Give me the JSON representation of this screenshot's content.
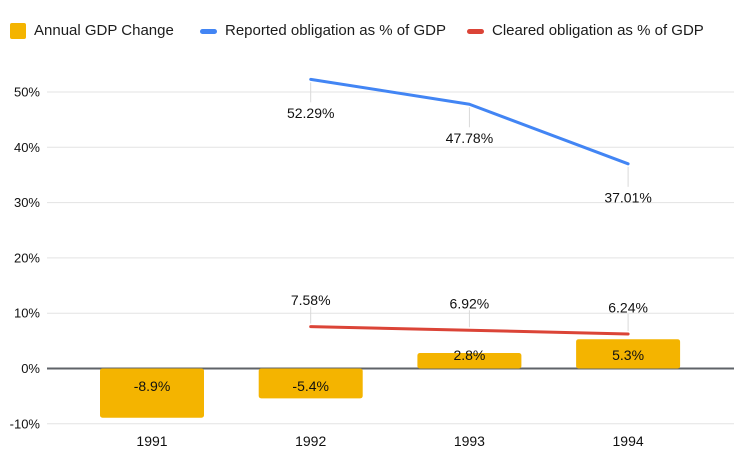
{
  "legend": {
    "items": [
      {
        "label": "Annual GDP Change",
        "swatch": "square",
        "color": "#F4B400"
      },
      {
        "label": "Reported obligation as % of GDP",
        "swatch": "line",
        "color": "#4285F4"
      },
      {
        "label": "Cleared obligation as % of GDP",
        "swatch": "line",
        "color": "#DB4437"
      }
    ]
  },
  "chart_data": {
    "type": "combo",
    "categories": [
      "1991",
      "1992",
      "1993",
      "1994"
    ],
    "series": [
      {
        "name": "Annual GDP Change",
        "type": "bar",
        "color": "#F4B400",
        "values": [
          -8.9,
          -5.4,
          2.8,
          5.3
        ],
        "labels": [
          "-8.9%",
          "-5.4%",
          "2.8%",
          "5.3%"
        ]
      },
      {
        "name": "Reported obligation as % of GDP",
        "type": "line",
        "color": "#4285F4",
        "values": [
          null,
          52.29,
          47.78,
          37.01
        ],
        "labels": [
          null,
          "52.29%",
          "47.78%",
          "37.01%"
        ],
        "label_position": "below"
      },
      {
        "name": "Cleared obligation as % of GDP",
        "type": "line",
        "color": "#DB4437",
        "values": [
          null,
          7.58,
          6.92,
          6.24
        ],
        "labels": [
          null,
          "7.58%",
          "6.92%",
          "6.24%"
        ],
        "label_position": "above"
      }
    ],
    "y_axis": {
      "ticks": [
        -10,
        0,
        10,
        20,
        30,
        40,
        50
      ],
      "tick_labels": [
        "-10%",
        "0%",
        "10%",
        "20%",
        "30%",
        "40%",
        "50%"
      ],
      "range": [
        -10,
        55
      ]
    },
    "xlabel": "",
    "ylabel": "",
    "title": "",
    "grid": true,
    "legend_position": "top"
  },
  "colors": {
    "background": "#ffffff",
    "gridline": "#e3e3e3",
    "zero_line": "#5f6368",
    "stem": "#d9d9d9",
    "text": "#111111"
  }
}
